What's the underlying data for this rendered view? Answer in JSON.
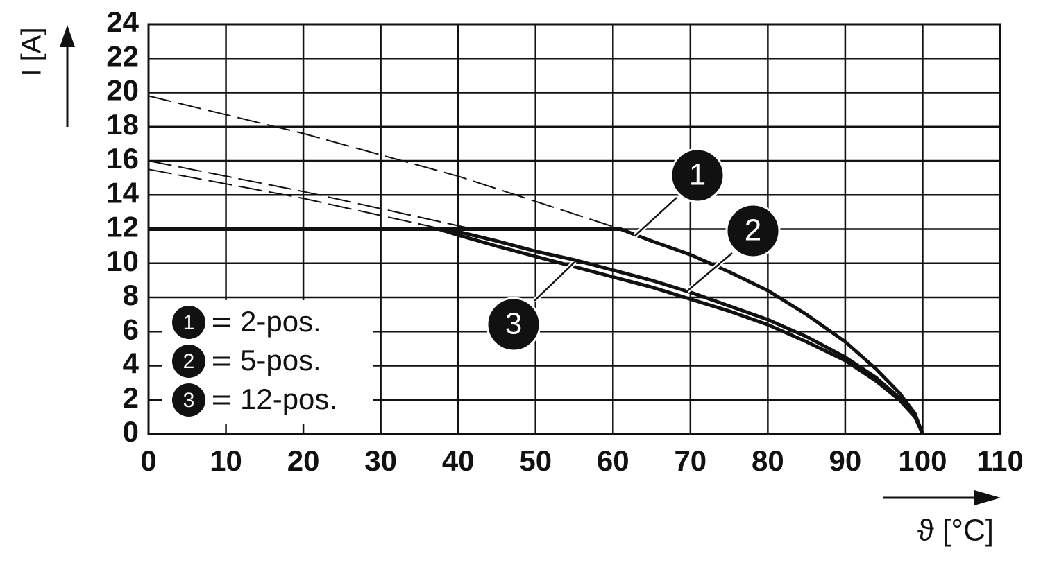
{
  "chart_data": {
    "type": "line",
    "ylabel": "I [A]",
    "xlabel": "ϑ [°C]",
    "xlim": [
      0,
      110
    ],
    "ylim": [
      0,
      24
    ],
    "xticks": [
      0,
      10,
      20,
      30,
      40,
      50,
      60,
      70,
      80,
      90,
      100,
      110
    ],
    "yticks": [
      0,
      2,
      4,
      6,
      8,
      10,
      12,
      14,
      16,
      18,
      20,
      22,
      24
    ],
    "grid": true,
    "color": "#111111",
    "series": [
      {
        "marker": "1",
        "name": "2-pos.",
        "x": [
          0,
          61,
          65,
          70,
          75,
          80,
          85,
          90,
          94,
          97,
          99,
          100
        ],
        "values": [
          12,
          12,
          11.3,
          10.5,
          9.5,
          8.4,
          7.0,
          5.4,
          3.8,
          2.4,
          1.2,
          0
        ],
        "dashed": {
          "x": [
            0,
            20,
            40,
            61
          ],
          "values": [
            19.8,
            17.6,
            15.1,
            12
          ]
        }
      },
      {
        "marker": "2",
        "name": "5-pos.",
        "x": [
          0,
          37.5,
          40,
          45,
          50,
          55,
          60,
          65,
          70,
          75,
          80,
          85,
          90,
          94,
          97,
          99,
          100
        ],
        "values": [
          12,
          12,
          11.85,
          11.3,
          10.7,
          10.2,
          9.6,
          9.0,
          8.3,
          7.5,
          6.7,
          5.7,
          4.5,
          3.3,
          2.1,
          1.1,
          0
        ],
        "dashed": {
          "x": [
            0,
            20,
            42
          ],
          "values": [
            16,
            14.2,
            12
          ]
        }
      },
      {
        "marker": "3",
        "name": "12-pos.",
        "x": [
          0,
          37.5,
          40,
          45,
          50,
          55,
          60,
          65,
          70,
          75,
          80,
          85,
          90,
          94,
          97,
          99,
          100
        ],
        "values": [
          12,
          12,
          11.65,
          11.0,
          10.4,
          9.8,
          9.2,
          8.6,
          7.9,
          7.2,
          6.4,
          5.4,
          4.3,
          3.1,
          2.0,
          1.0,
          0
        ],
        "dashed": {
          "x": [
            0,
            20,
            38
          ],
          "values": [
            15.5,
            13.8,
            12
          ]
        }
      }
    ]
  }
}
